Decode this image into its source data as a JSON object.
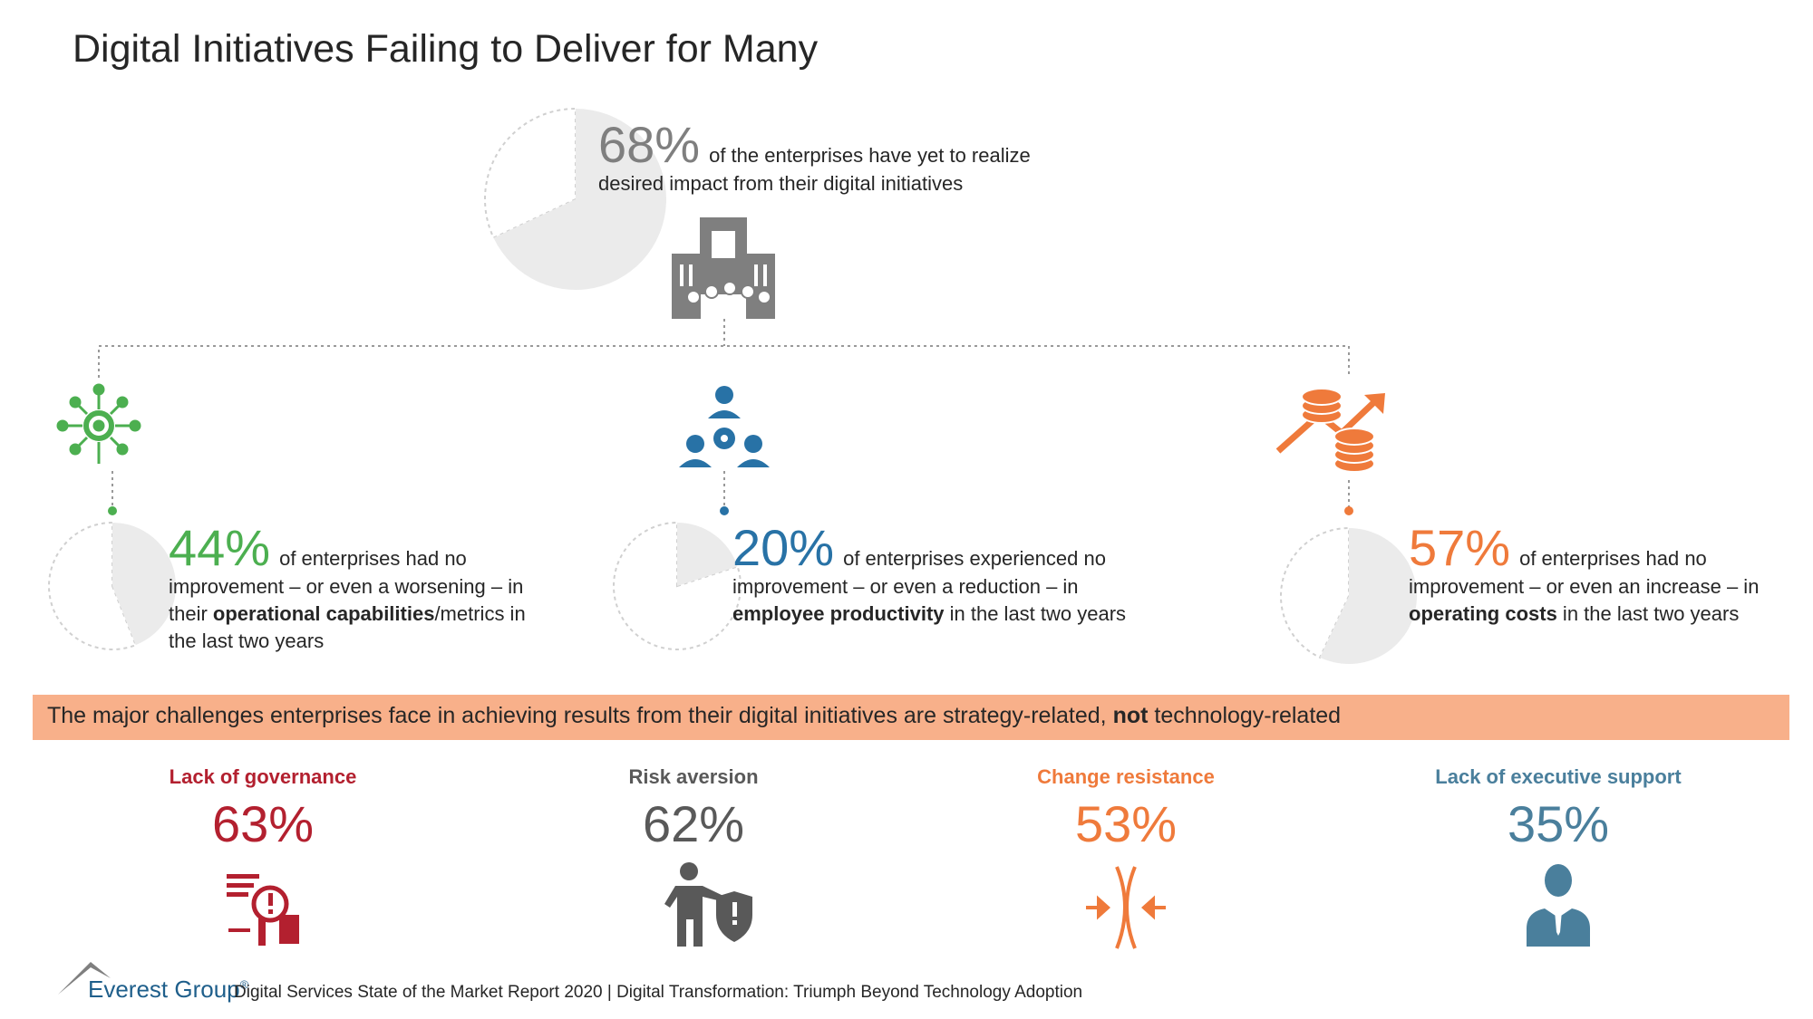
{
  "title": "Digital Initiatives Failing to Deliver for Many",
  "headline": {
    "value": 68,
    "label": "68%",
    "color": "#7f7f7f",
    "text": "of the enterprises have yet to realize desired  impact from their digital initiatives"
  },
  "stats": [
    {
      "value": 44,
      "label": "44%",
      "color": "#4caf50",
      "text": [
        {
          "text": "of enterprises had no improvement – or even a worsening – in their "
        },
        {
          "text": "operational capabilities",
          "bold": true
        },
        {
          "text": "/metrics in the last two years"
        }
      ]
    },
    {
      "value": 20,
      "label": "20%",
      "color": "#2872a6",
      "text": [
        {
          "text": "of enterprises experienced no improvement – or even a reduction – in "
        },
        {
          "text": "employee productivity",
          "bold": true
        },
        {
          "text": " in the last two years"
        }
      ]
    },
    {
      "value": 57,
      "label": "57%",
      "color": "#ef7a3b",
      "text": [
        {
          "text": "of enterprises had no improvement – or even an increase – in "
        },
        {
          "text": "operating costs",
          "bold": true
        },
        {
          "text": " in the last two years"
        }
      ]
    }
  ],
  "banner": [
    {
      "text": "The major challenges enterprises face in achieving results from their digital initiatives are strategy-related, "
    },
    {
      "text": "not",
      "bold": true
    },
    {
      "text": " technology-related"
    }
  ],
  "challenges": [
    {
      "label": "Lack of governance",
      "value": "63%",
      "color": "#b3202f"
    },
    {
      "label": "Risk aversion",
      "value": "62%",
      "color": "#595959"
    },
    {
      "label": "Change resistance",
      "value": "53%",
      "color": "#ef7a3b"
    },
    {
      "label": "Lack of executive support",
      "value": "35%",
      "color": "#4a7f9c"
    }
  ],
  "footer": {
    "brand": "Everest Group",
    "mark": "®",
    "source": "Digital Services State of the Market Report 2020 | Digital Transformation: Triumph Beyond Technology Adoption"
  }
}
